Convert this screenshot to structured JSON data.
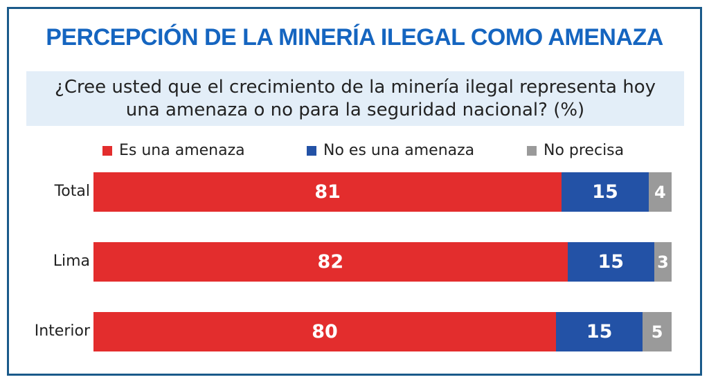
{
  "chart_data": {
    "type": "bar",
    "orientation": "horizontal",
    "stacked": true,
    "title": "PERCEPCIÓN DE LA MINERÍA ILEGAL COMO AMENAZA",
    "subtitle": "¿Cree usted que el crecimiento de la minería ilegal representa hoy una amenaza o no para la seguridad nacional? (%)",
    "categories": [
      "Total",
      "Lima",
      "Interior"
    ],
    "series": [
      {
        "name": "Es una amenaza",
        "color": "#e32d2d",
        "values": [
          81,
          82,
          80
        ]
      },
      {
        "name": "No es una amenaza",
        "color": "#2352a6",
        "values": [
          15,
          15,
          15
        ]
      },
      {
        "name": "No precisa",
        "color": "#9a9a9a",
        "values": [
          4,
          3,
          5
        ]
      }
    ],
    "legend_position": "top"
  }
}
